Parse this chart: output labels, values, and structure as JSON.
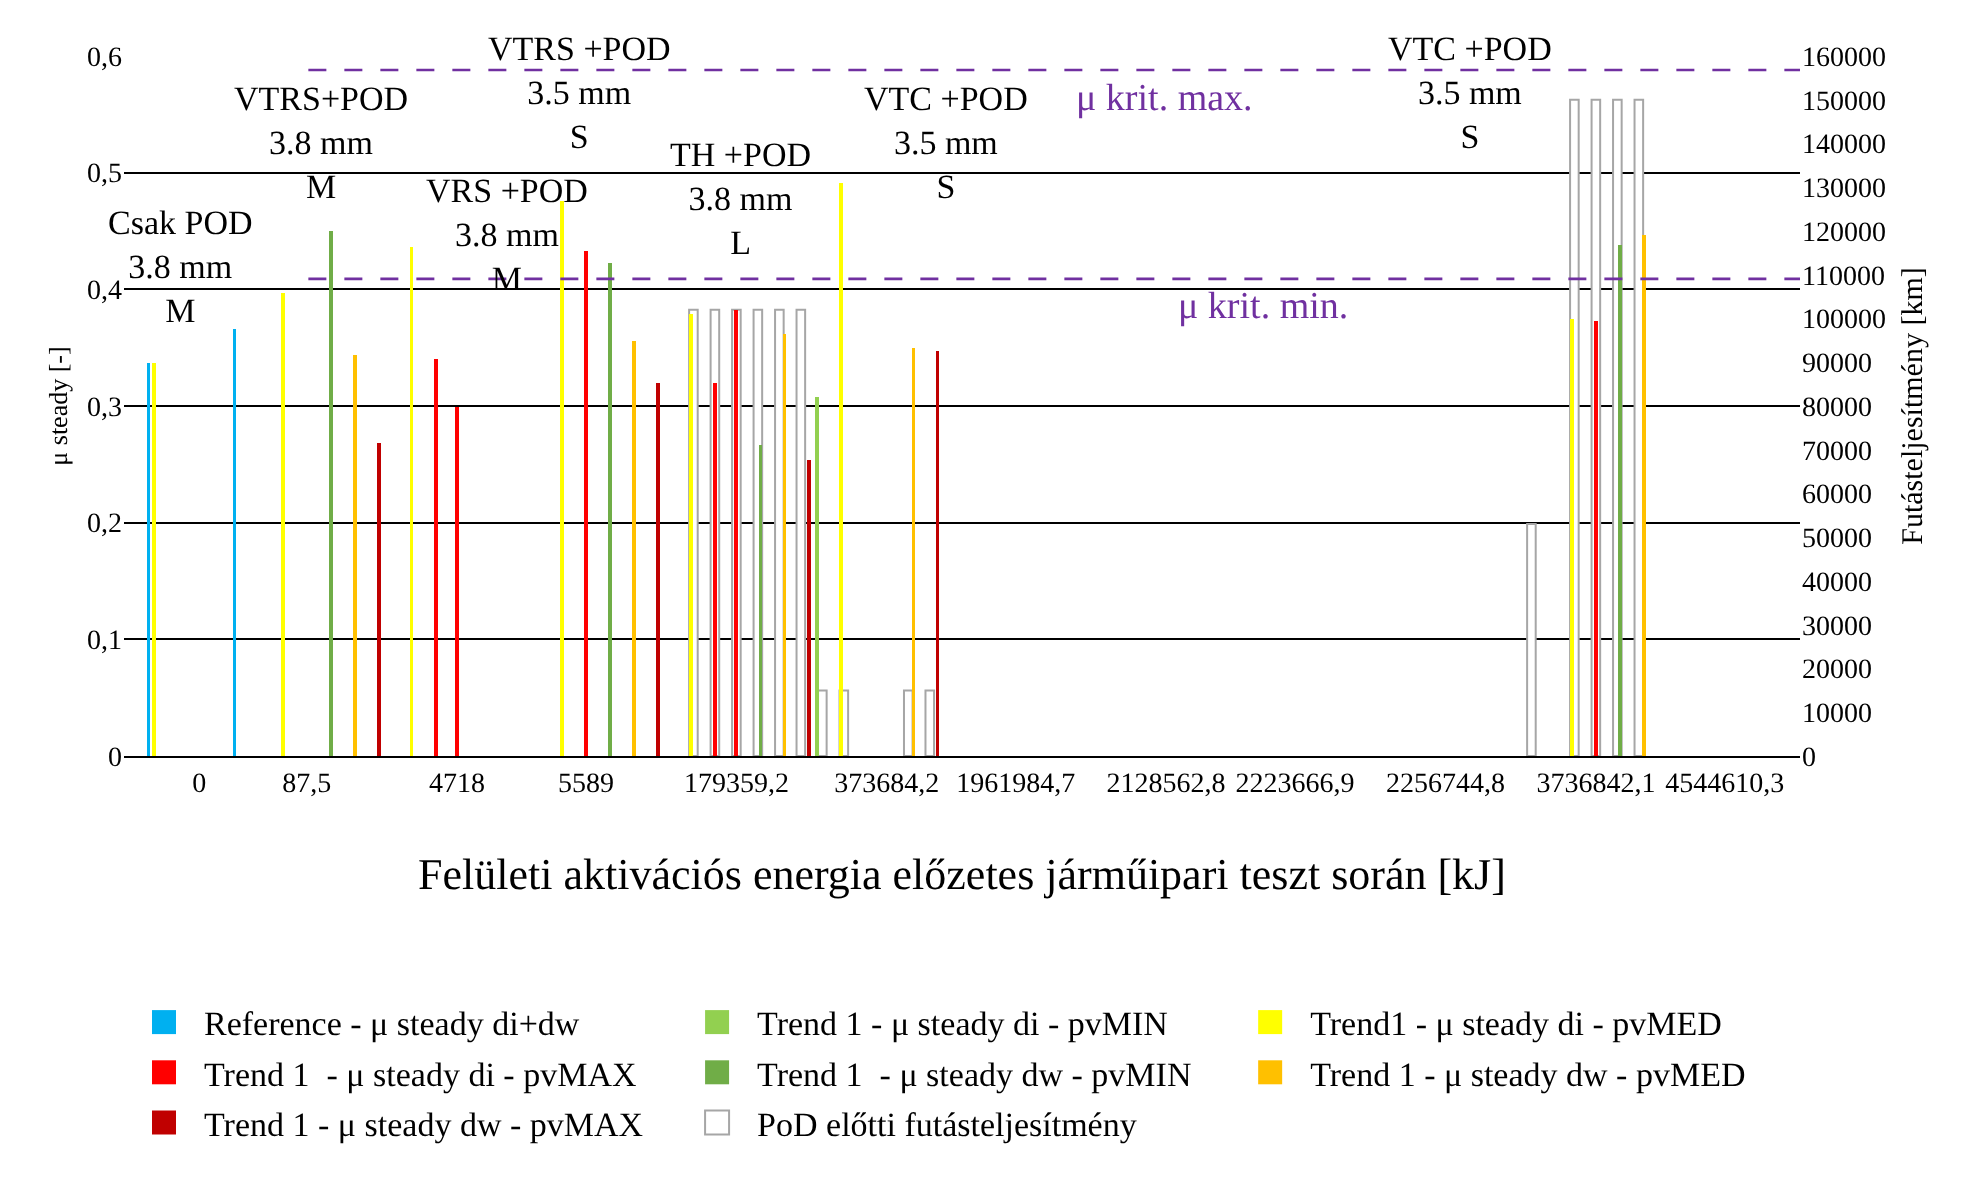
{
  "chart_data": {
    "type": "bar",
    "xlabel": "Felületi aktivációs energia előzetes járműipari teszt során [kJ]",
    "ylabel": "μ steady [-]",
    "y2label": "Futásteljesítmény [km]",
    "categories": [
      null,
      null,
      null,
      "0",
      null,
      null,
      null,
      null,
      "87,5",
      null,
      null,
      null,
      null,
      null,
      null,
      "4718",
      null,
      null,
      null,
      null,
      null,
      "5589",
      null,
      null,
      null,
      null,
      null,
      null,
      "179359,2",
      null,
      null,
      null,
      null,
      null,
      null,
      "373684,2",
      null,
      null,
      null,
      null,
      null,
      "1961984,7",
      null,
      null,
      null,
      null,
      null,
      null,
      "2128562,8",
      null,
      null,
      null,
      null,
      null,
      "2223666,9",
      null,
      null,
      null,
      null,
      null,
      null,
      "2256744,8",
      null,
      null,
      null,
      null,
      null,
      null,
      "3736842,1",
      null,
      null,
      null,
      null,
      null,
      "4544610,3",
      null,
      null,
      null
    ],
    "series": [
      {
        "name": "Reference - μ steady di+dw",
        "color": "#00b0f0",
        "values": [
          null,
          0.337,
          null,
          null,
          null,
          0.366,
          null,
          null,
          null,
          null,
          null,
          null,
          null,
          null,
          null,
          null,
          null,
          null,
          null,
          null,
          null,
          null,
          null,
          null,
          null,
          null,
          null,
          null,
          null,
          null,
          null,
          null,
          null,
          null,
          null,
          null,
          null,
          null,
          null,
          null,
          null,
          null,
          null,
          null,
          null,
          null,
          null,
          null,
          null,
          null,
          null,
          null,
          null,
          null,
          null,
          null,
          null,
          null,
          null,
          null,
          null,
          null,
          null,
          null,
          null,
          null,
          null,
          null,
          null,
          null,
          null,
          null,
          null,
          null,
          null,
          null,
          null,
          null
        ]
      },
      {
        "name": "Trend 1 - μ steady di - pvMIN",
        "color": "#92d050",
        "values": [
          null,
          null,
          null,
          null,
          null,
          null,
          null,
          null,
          null,
          null,
          null,
          null,
          null,
          null,
          null,
          null,
          null,
          null,
          null,
          null,
          null,
          null,
          null,
          null,
          null,
          null,
          null,
          null,
          null,
          null,
          null,
          null,
          0.308,
          null,
          null,
          null,
          null,
          null,
          null,
          null,
          null,
          null,
          null,
          null,
          null,
          null,
          null,
          null,
          null,
          null,
          null,
          null,
          null,
          null,
          null,
          null,
          null,
          null,
          null,
          null,
          null,
          null,
          null,
          null,
          null,
          null,
          null,
          null,
          null,
          null,
          null,
          null,
          null,
          null,
          null,
          null,
          null,
          null
        ]
      },
      {
        "name": "Trend1 - μ steady di - pvMED",
        "color": "#ffff00",
        "values": [
          null,
          0.337,
          null,
          null,
          null,
          null,
          null,
          0.397,
          null,
          null,
          null,
          null,
          null,
          0.436,
          null,
          null,
          null,
          null,
          null,
          null,
          0.476,
          null,
          null,
          null,
          null,
          null,
          0.379,
          null,
          null,
          null,
          null,
          null,
          null,
          0.491,
          null,
          null,
          null,
          null,
          null,
          null,
          null,
          null,
          null,
          null,
          null,
          null,
          null,
          null,
          null,
          null,
          null,
          null,
          null,
          null,
          null,
          null,
          null,
          null,
          null,
          null,
          null,
          null,
          null,
          null,
          null,
          null,
          null,
          0.375,
          null,
          null,
          null,
          null,
          null,
          null,
          null,
          null,
          null,
          null
        ]
      },
      {
        "name": "Trend 1  - μ steady di - pvMAX",
        "color": "#ff0000",
        "values": [
          null,
          null,
          null,
          null,
          null,
          null,
          null,
          null,
          null,
          null,
          null,
          null,
          null,
          null,
          0.34,
          0.299,
          null,
          null,
          null,
          null,
          null,
          0.433,
          null,
          null,
          null,
          null,
          null,
          0.32,
          0.382,
          null,
          null,
          null,
          null,
          null,
          null,
          null,
          null,
          null,
          null,
          null,
          null,
          null,
          null,
          null,
          null,
          null,
          null,
          null,
          null,
          null,
          null,
          null,
          null,
          null,
          null,
          null,
          null,
          null,
          null,
          null,
          null,
          null,
          null,
          null,
          null,
          null,
          null,
          null,
          0.373,
          null,
          null,
          null,
          null,
          null,
          null,
          null,
          null,
          null
        ]
      },
      {
        "name": "Trend 1  - μ steady dw - pvMIN",
        "color": "#70ad47",
        "values": [
          null,
          null,
          null,
          null,
          null,
          null,
          null,
          null,
          null,
          0.45,
          null,
          null,
          null,
          null,
          null,
          null,
          null,
          null,
          null,
          null,
          null,
          null,
          0.423,
          null,
          null,
          null,
          null,
          null,
          null,
          0.267,
          null,
          null,
          null,
          null,
          null,
          null,
          null,
          null,
          null,
          null,
          null,
          null,
          null,
          null,
          null,
          null,
          null,
          null,
          null,
          null,
          null,
          null,
          null,
          null,
          null,
          null,
          null,
          null,
          null,
          null,
          null,
          null,
          null,
          null,
          null,
          null,
          null,
          null,
          null,
          0.438,
          null,
          null,
          null,
          null,
          null,
          null,
          null,
          null
        ]
      },
      {
        "name": "Trend 1 - μ steady dw - pvMED",
        "color": "#ffc000",
        "values": [
          null,
          null,
          null,
          null,
          null,
          null,
          null,
          null,
          null,
          null,
          0.344,
          null,
          null,
          null,
          null,
          null,
          null,
          null,
          null,
          null,
          null,
          null,
          null,
          0.356,
          null,
          null,
          null,
          null,
          null,
          null,
          0.362,
          null,
          null,
          null,
          null,
          null,
          0.35,
          null,
          null,
          null,
          null,
          null,
          null,
          null,
          null,
          null,
          null,
          null,
          null,
          null,
          null,
          null,
          null,
          null,
          null,
          null,
          null,
          null,
          null,
          null,
          null,
          null,
          null,
          null,
          null,
          null,
          null,
          null,
          null,
          null,
          0.447,
          null,
          null,
          null,
          null,
          null,
          null,
          null
        ]
      },
      {
        "name": "Trend 1 - μ steady dw - pvMAX",
        "color": "#c00000",
        "values": [
          null,
          null,
          null,
          null,
          null,
          null,
          null,
          null,
          null,
          null,
          null,
          0.268,
          null,
          null,
          null,
          null,
          null,
          null,
          null,
          null,
          null,
          null,
          null,
          null,
          0.32,
          null,
          null,
          null,
          null,
          null,
          null,
          0.254,
          null,
          null,
          null,
          null,
          null,
          0.347,
          null,
          null,
          null,
          null,
          null,
          null,
          null,
          null,
          null,
          null,
          null,
          null,
          null,
          null,
          null,
          null,
          null,
          null,
          null,
          null,
          null,
          null,
          null,
          null,
          null,
          null,
          null,
          null,
          null,
          null,
          null,
          null,
          null,
          null,
          null,
          null,
          null,
          null,
          null,
          null
        ]
      },
      {
        "name": "PoD előtti futásteljesítmény",
        "color": "#ffffff",
        "axis": "y2",
        "values": [
          null,
          null,
          null,
          null,
          null,
          null,
          null,
          null,
          null,
          null,
          null,
          null,
          null,
          null,
          null,
          null,
          null,
          null,
          null,
          null,
          null,
          null,
          null,
          null,
          null,
          null,
          102000,
          102000,
          102000,
          102000,
          102000,
          102000,
          15000,
          15000,
          null,
          null,
          15000,
          15000,
          null,
          null,
          null,
          null,
          null,
          null,
          null,
          null,
          null,
          null,
          null,
          null,
          null,
          null,
          null,
          null,
          null,
          null,
          null,
          null,
          null,
          null,
          null,
          null,
          null,
          null,
          null,
          53000,
          null,
          150000,
          150000,
          150000,
          150000,
          null,
          null,
          null,
          null,
          null,
          null,
          null
        ]
      }
    ],
    "ylim": [
      0,
      0.6
    ],
    "yticks": [
      0,
      {
        "value": 0.1,
        "label": "0,1"
      },
      {
        "value": 0.2,
        "label": "0,2"
      },
      {
        "value": 0.3,
        "label": "0,3"
      },
      {
        "value": 0.4,
        "label": "0,4"
      },
      {
        "value": 0.5,
        "label": "0,5"
      },
      {
        "value": 0.6,
        "label": "0,6"
      }
    ],
    "y2lim": [
      0,
      160000
    ],
    "y2ticks": [
      0,
      10000,
      20000,
      30000,
      40000,
      50000,
      60000,
      70000,
      80000,
      90000,
      100000,
      110000,
      120000,
      130000,
      140000,
      150000,
      160000
    ],
    "grid": "y",
    "legend": "bottom",
    "ref_lines": [
      {
        "axis": "y",
        "value": 0.588,
        "label": "μ krit. max.",
        "color": "#7030a0",
        "line_style": "dashed"
      },
      {
        "axis": "y",
        "value": 0.409,
        "label": "μ krit. min.",
        "color": "#7030a0",
        "line_style": "dashed"
      }
    ],
    "annotations": [
      "Csak POD\n3.8 mm\nM",
      "VTRS+POD\n3.8 mm\nM",
      "VRS +POD\n3.8 mm\nM",
      "VTRS +POD\n3.5 mm\nS",
      "TH +POD\n3.8 mm\nL",
      "VTC +POD\n3.5 mm\nS",
      "VTC +POD\n3.5 mm\nS"
    ]
  }
}
